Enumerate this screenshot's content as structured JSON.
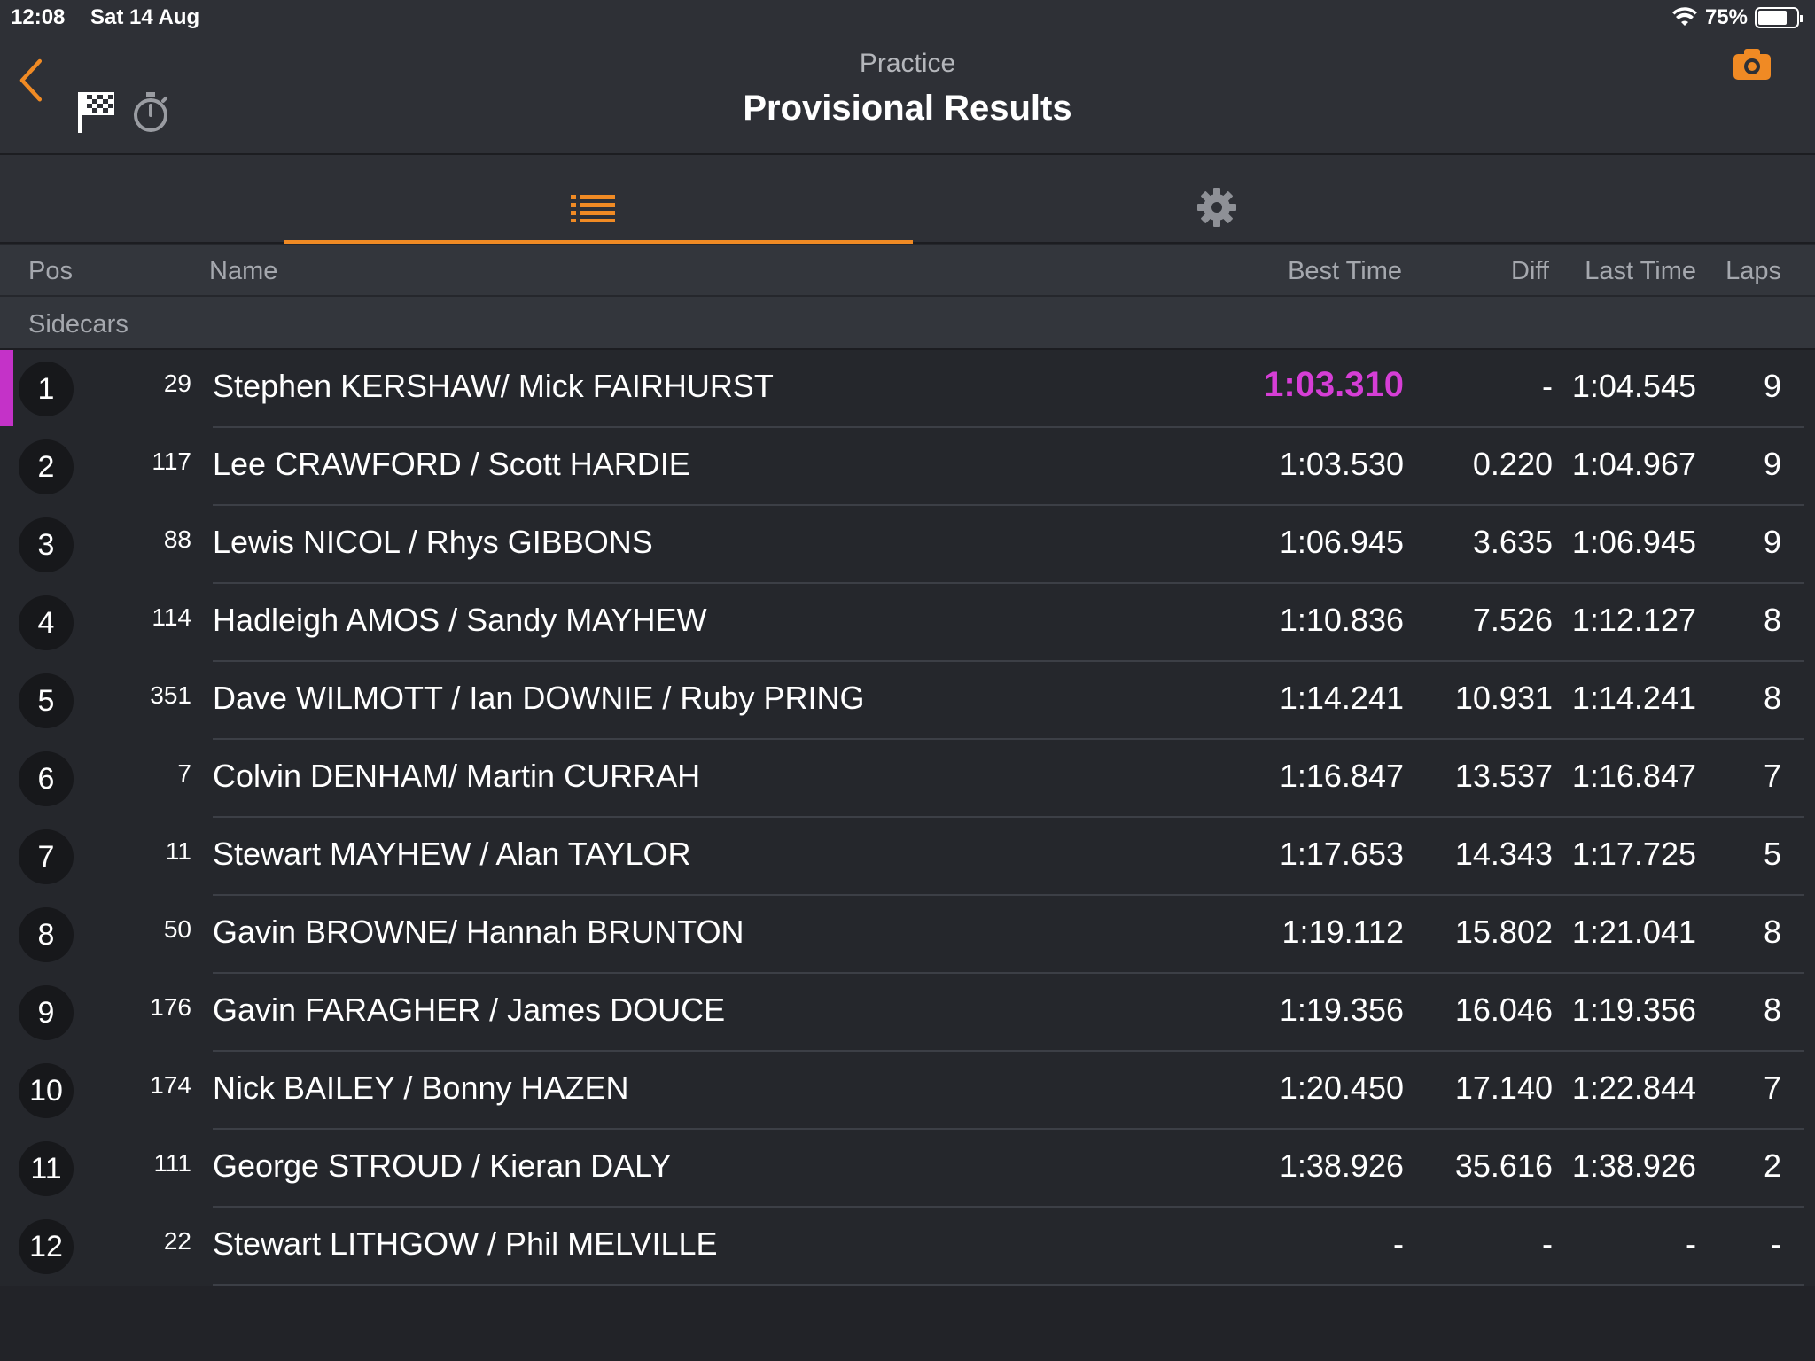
{
  "status_bar": {
    "time": "12:08",
    "date": "Sat 14 Aug",
    "battery": "75%",
    "battery_level": 0.75
  },
  "header": {
    "subtitle": "Practice",
    "title": "Provisional Results"
  },
  "colors": {
    "accent": "#f08a24",
    "fastest": "#d63ed6",
    "background": "#25272c"
  },
  "tabs": [
    {
      "icon": "list-icon",
      "active": true
    },
    {
      "icon": "gear-icon",
      "active": false
    }
  ],
  "columns": {
    "pos": "Pos",
    "name": "Name",
    "best": "Best Time",
    "diff": "Diff",
    "last": "Last Time",
    "laps": "Laps"
  },
  "group": "Sidecars",
  "rows": [
    {
      "pos": "1",
      "num": "29",
      "name": "Stephen KERSHAW/ Mick FAIRHURST",
      "best": "1:03.310",
      "diff": "-",
      "last": "1:04.545",
      "laps": "9",
      "fastest": true
    },
    {
      "pos": "2",
      "num": "117",
      "name": "Lee CRAWFORD / Scott HARDIE",
      "best": "1:03.530",
      "diff": "0.220",
      "last": "1:04.967",
      "laps": "9"
    },
    {
      "pos": "3",
      "num": "88",
      "name": "Lewis NICOL / Rhys GIBBONS",
      "best": "1:06.945",
      "diff": "3.635",
      "last": "1:06.945",
      "laps": "9"
    },
    {
      "pos": "4",
      "num": "114",
      "name": "Hadleigh AMOS / Sandy MAYHEW",
      "best": "1:10.836",
      "diff": "7.526",
      "last": "1:12.127",
      "laps": "8"
    },
    {
      "pos": "5",
      "num": "351",
      "name": "Dave WILMOTT / Ian DOWNIE / Ruby PRING",
      "best": "1:14.241",
      "diff": "10.931",
      "last": "1:14.241",
      "laps": "8"
    },
    {
      "pos": "6",
      "num": "7",
      "name": "Colvin DENHAM/ Martin CURRAH",
      "best": "1:16.847",
      "diff": "13.537",
      "last": "1:16.847",
      "laps": "7"
    },
    {
      "pos": "7",
      "num": "11",
      "name": "Stewart MAYHEW / Alan TAYLOR",
      "best": "1:17.653",
      "diff": "14.343",
      "last": "1:17.725",
      "laps": "5"
    },
    {
      "pos": "8",
      "num": "50",
      "name": "Gavin BROWNE/ Hannah BRUNTON",
      "best": "1:19.112",
      "diff": "15.802",
      "last": "1:21.041",
      "laps": "8"
    },
    {
      "pos": "9",
      "num": "176",
      "name": "Gavin FARAGHER / James DOUCE",
      "best": "1:19.356",
      "diff": "16.046",
      "last": "1:19.356",
      "laps": "8"
    },
    {
      "pos": "10",
      "num": "174",
      "name": "Nick BAILEY / Bonny HAZEN",
      "best": "1:20.450",
      "diff": "17.140",
      "last": "1:22.844",
      "laps": "7"
    },
    {
      "pos": "11",
      "num": "111",
      "name": "George STROUD / Kieran DALY",
      "best": "1:38.926",
      "diff": "35.616",
      "last": "1:38.926",
      "laps": "2"
    },
    {
      "pos": "12",
      "num": "22",
      "name": "Stewart LITHGOW / Phil MELVILLE",
      "best": "-",
      "diff": "-",
      "last": "-",
      "laps": "-"
    }
  ]
}
